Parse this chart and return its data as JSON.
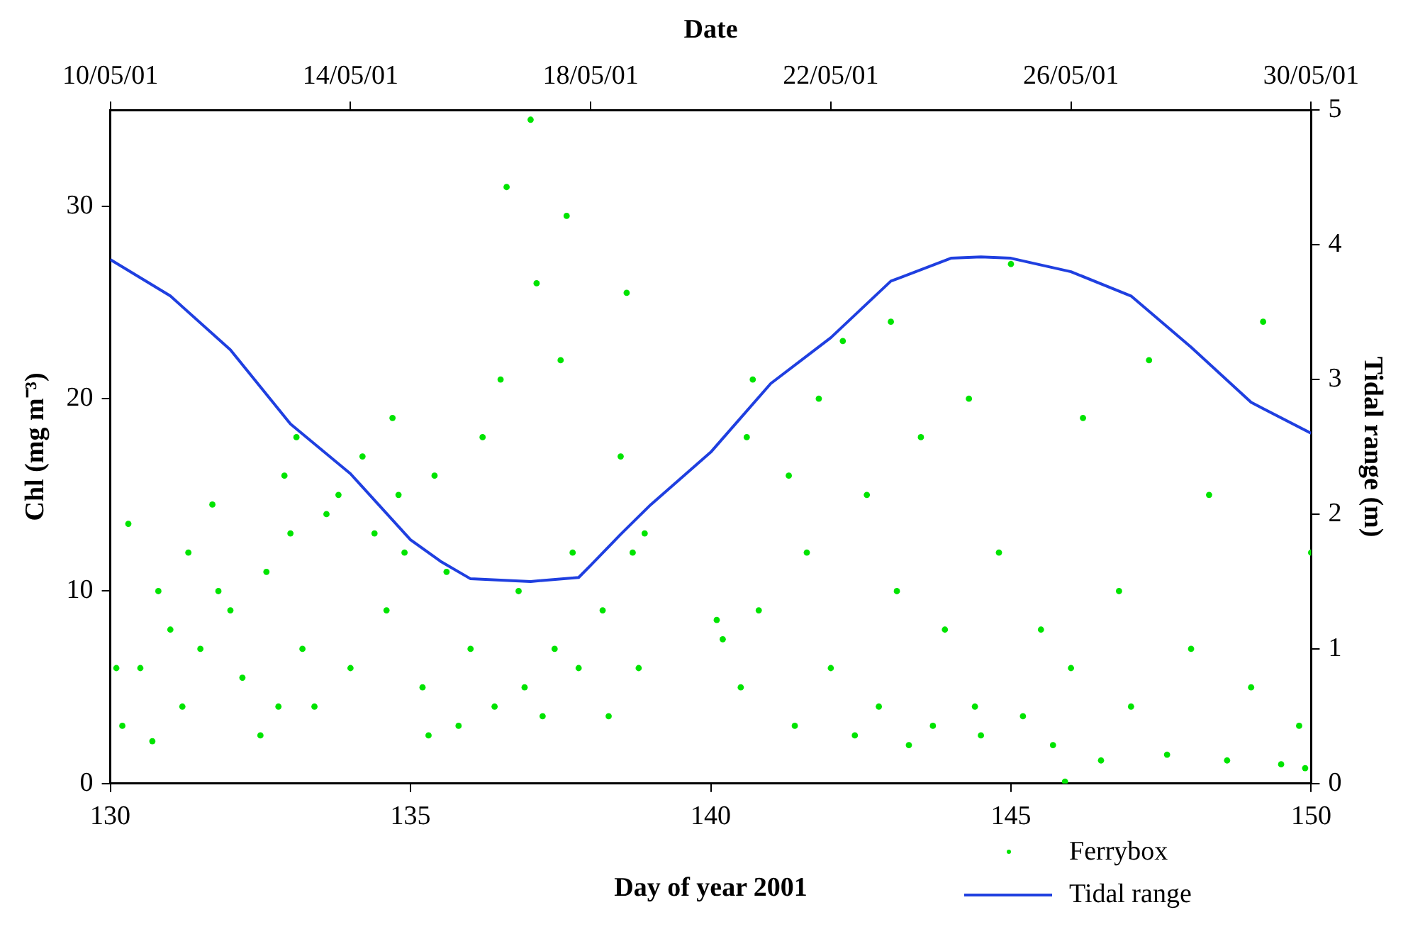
{
  "chart_data": {
    "type": "scatter",
    "xlabel": "Day of year 2001",
    "ylabel": "Chl (mg m⁻³)",
    "y2label": "Tidal range (m)",
    "x2label": "Date",
    "xlim": [
      130,
      150
    ],
    "xticks": [
      130,
      135,
      140,
      145,
      150
    ],
    "ylim": [
      0,
      35
    ],
    "yticks": [
      0,
      10,
      20,
      30
    ],
    "y2lim": [
      0,
      5
    ],
    "y2ticks": [
      0,
      1,
      2,
      3,
      4,
      5
    ],
    "x2lim": [
      "2001-05-10",
      "2001-05-30"
    ],
    "x2ticks": [
      {
        "value": "2001-05-10",
        "label": "10/05/01"
      },
      {
        "value": "2001-05-14",
        "label": "14/05/01"
      },
      {
        "value": "2001-05-18",
        "label": "18/05/01"
      },
      {
        "value": "2001-05-22",
        "label": "22/05/01"
      },
      {
        "value": "2001-05-26",
        "label": "26/05/01"
      },
      {
        "value": "2001-05-30",
        "label": "30/05/01"
      }
    ],
    "grid": false,
    "legend": "bottom right",
    "marker": "circle",
    "series": [
      {
        "name": "Ferrybox",
        "color": "#00e400",
        "x": [
          130.1,
          130.2,
          130.3,
          130.5,
          130.7,
          130.8,
          131,
          131.2,
          131.3,
          131.5,
          131.7,
          131.8,
          132,
          132.2,
          132.5,
          132.6,
          132.8,
          132.9,
          133,
          133.1,
          133.2,
          133.4,
          133.6,
          133.8,
          134,
          134.2,
          134.4,
          134.6,
          134.7,
          134.8,
          134.9,
          135.2,
          135.3,
          135.4,
          135.6,
          135.8,
          136,
          136.2,
          136.4,
          136.5,
          136.6,
          136.8,
          136.9,
          137,
          137.1,
          137.2,
          137.4,
          137.5,
          137.6,
          137.7,
          137.8,
          138.2,
          138.3,
          138.5,
          138.6,
          138.7,
          138.8,
          138.9,
          140.1,
          140.2,
          140.5,
          140.6,
          140.7,
          140.8,
          141.3,
          141.4,
          141.6,
          141.8,
          142,
          142.2,
          142.4,
          142.6,
          142.8,
          143,
          143.1,
          143.3,
          143.5,
          143.7,
          143.9,
          144.3,
          144.4,
          144.5,
          144.8,
          145,
          145.2,
          145.5,
          145.7,
          145.9,
          146,
          146.2,
          146.5,
          146.8,
          147,
          147.3,
          147.6,
          148,
          148.3,
          148.6,
          149,
          149.2,
          149.5,
          149.8,
          149.9,
          150
        ],
        "values": [
          6,
          3,
          13.5,
          6,
          2.2,
          10,
          8,
          4,
          12,
          7,
          14.5,
          10,
          9,
          5.5,
          2.5,
          11,
          4,
          16,
          13,
          18,
          7,
          4,
          14,
          15,
          6,
          17,
          13,
          9,
          19,
          15,
          12,
          5,
          2.5,
          16,
          11,
          3,
          7,
          18,
          4,
          21,
          31,
          10,
          5,
          34.5,
          26,
          3.5,
          7,
          22,
          29.5,
          12,
          6,
          9,
          3.5,
          17,
          25.5,
          12,
          6,
          13,
          8.5,
          7.5,
          5,
          18,
          21,
          9,
          16,
          3,
          12,
          20,
          6,
          23,
          2.5,
          15,
          4,
          24,
          10,
          2,
          18,
          3,
          8,
          20,
          4,
          2.5,
          12,
          27,
          3.5,
          8,
          2,
          0.1,
          6,
          19,
          1.2,
          10,
          4,
          22,
          1.5,
          7,
          15,
          1.2,
          5,
          24,
          1,
          3,
          0.8,
          12
        ]
      },
      {
        "name": "Tidal range",
        "type": "line",
        "axis": "y2",
        "color": "#1f3fe0",
        "marker": "none",
        "line_style": "solid",
        "x": [
          130,
          131,
          132,
          133,
          134,
          135,
          135.5,
          136,
          137,
          137.8,
          138,
          138.5,
          139,
          140,
          141,
          142,
          143,
          144,
          144.5,
          145,
          146,
          147,
          148,
          149,
          150
        ],
        "values": [
          3.89,
          3.62,
          3.22,
          2.67,
          2.3,
          1.81,
          1.65,
          1.52,
          1.5,
          1.53,
          1.62,
          1.85,
          2.07,
          2.46,
          2.97,
          3.31,
          3.73,
          3.9,
          3.91,
          3.9,
          3.8,
          3.62,
          3.24,
          2.83,
          2.6
        ]
      }
    ]
  }
}
